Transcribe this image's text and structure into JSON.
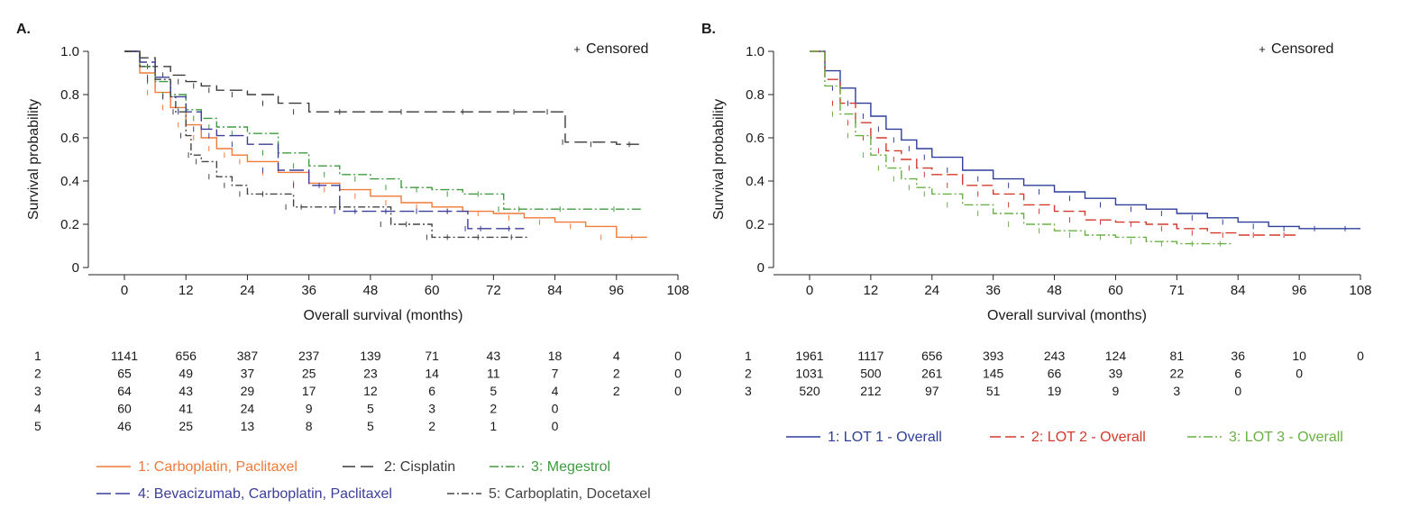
{
  "panels": [
    {
      "label": "A.",
      "censor_label": "Censored",
      "chart_data": {
        "type": "line",
        "xlabel": "Overall survival (months)",
        "ylabel": "Survival probability",
        "xlim": [
          0,
          108
        ],
        "ylim": [
          0,
          1
        ],
        "x_ticks": [
          0,
          12,
          24,
          36,
          48,
          60,
          72,
          84,
          96,
          108
        ],
        "x_tick_labels": [
          "0",
          "12",
          "24",
          "36",
          "48",
          "60",
          "72",
          "84",
          "96",
          "108"
        ],
        "y_ticks": [
          0,
          0.2,
          0.4,
          0.6,
          0.8,
          1.0
        ],
        "y_tick_labels": [
          "0",
          "0.2",
          "0.4",
          "0.6",
          "0.8",
          "1.0"
        ],
        "grid": false,
        "legend_position": "bottom",
        "series": [
          {
            "name": "1: Carboplatin, Paclitaxel",
            "color": "#ef7a3a",
            "dash": "",
            "x": [
              0,
              3,
              6,
              9,
              12,
              15,
              18,
              21,
              24,
              30,
              36,
              42,
              48,
              54,
              60,
              66,
              72,
              78,
              84,
              90,
              96,
              102
            ],
            "y": [
              1.0,
              0.9,
              0.81,
              0.74,
              0.66,
              0.6,
              0.55,
              0.52,
              0.49,
              0.44,
              0.39,
              0.36,
              0.33,
              0.3,
              0.28,
              0.26,
              0.25,
              0.23,
              0.21,
              0.19,
              0.14,
              0.14
            ]
          },
          {
            "name": "2: Cisplatin",
            "color": "#3a3a3a",
            "dash": "14 6",
            "x": [
              0,
              3,
              6,
              9,
              12,
              15,
              18,
              24,
              30,
              36,
              48,
              60,
              72,
              80,
              85,
              86,
              96,
              101
            ],
            "y": [
              1.0,
              0.97,
              0.93,
              0.89,
              0.86,
              0.84,
              0.82,
              0.8,
              0.76,
              0.72,
              0.72,
              0.72,
              0.72,
              0.72,
              0.72,
              0.58,
              0.57,
              0.57
            ]
          },
          {
            "name": "3: Megestrol",
            "color": "#3f9b3f",
            "dash": "10 3 2 3",
            "x": [
              0,
              3,
              6,
              9,
              12,
              15,
              18,
              24,
              30,
              36,
              42,
              48,
              54,
              60,
              66,
              72,
              74,
              80,
              90,
              101
            ],
            "y": [
              1.0,
              0.93,
              0.86,
              0.8,
              0.73,
              0.69,
              0.65,
              0.62,
              0.53,
              0.47,
              0.43,
              0.41,
              0.37,
              0.36,
              0.34,
              0.34,
              0.27,
              0.27,
              0.27,
              0.27
            ]
          },
          {
            "name": "4: Bevacizumab, Carboplatin, Paclitaxel",
            "color": "#3b3e9a",
            "dash": "16 5",
            "x": [
              0,
              3,
              6,
              9,
              12,
              15,
              18,
              24,
              30,
              36,
              40,
              42,
              48,
              54,
              60,
              66,
              67,
              72,
              78
            ],
            "y": [
              1.0,
              0.95,
              0.88,
              0.79,
              0.72,
              0.64,
              0.61,
              0.57,
              0.45,
              0.38,
              0.38,
              0.26,
              0.26,
              0.26,
              0.26,
              0.26,
              0.18,
              0.18,
              0.18
            ]
          },
          {
            "name": "5: Carboplatin, Docetaxel",
            "color": "#444444",
            "dash": "8 3 2 3",
            "x": [
              0,
              3,
              6,
              9,
              10,
              12,
              13,
              15,
              18,
              21,
              24,
              30,
              33,
              36,
              48,
              52,
              58,
              60,
              66,
              72,
              79
            ],
            "y": [
              1.0,
              0.93,
              0.87,
              0.79,
              0.72,
              0.61,
              0.52,
              0.49,
              0.42,
              0.38,
              0.34,
              0.34,
              0.28,
              0.28,
              0.28,
              0.2,
              0.2,
              0.14,
              0.14,
              0.14,
              0.14
            ]
          }
        ]
      },
      "risk_table": {
        "columns_x": [
          0,
          12,
          24,
          36,
          48,
          60,
          72,
          84,
          96,
          108
        ],
        "rows": [
          {
            "label": "1",
            "values": [
              "1141",
              "656",
              "387",
              "237",
              "139",
              "71",
              "43",
              "18",
              "4",
              "0"
            ]
          },
          {
            "label": "2",
            "values": [
              "65",
              "49",
              "37",
              "25",
              "23",
              "14",
              "11",
              "7",
              "2",
              "0"
            ]
          },
          {
            "label": "3",
            "values": [
              "64",
              "43",
              "29",
              "17",
              "12",
              "6",
              "5",
              "4",
              "2",
              "0"
            ]
          },
          {
            "label": "4",
            "values": [
              "60",
              "41",
              "24",
              "9",
              "5",
              "3",
              "2",
              "0",
              "",
              ""
            ]
          },
          {
            "label": "5",
            "values": [
              "46",
              "25",
              "13",
              "8",
              "5",
              "2",
              "1",
              "0",
              "",
              ""
            ]
          }
        ]
      }
    },
    {
      "label": "B.",
      "censor_label": "Censored",
      "chart_data": {
        "type": "line",
        "xlabel": "Overall survival (months)",
        "ylabel": "Survival probability",
        "xlim": [
          0,
          108
        ],
        "ylim": [
          0,
          1
        ],
        "x_ticks": [
          0,
          12,
          24,
          36,
          48,
          60,
          71,
          84,
          96,
          108
        ],
        "x_tick_labels": [
          "0",
          "12",
          "24",
          "36",
          "48",
          "60",
          "71",
          "84",
          "96",
          "108"
        ],
        "y_ticks": [
          0,
          0.2,
          0.4,
          0.6,
          0.8,
          1.0
        ],
        "y_tick_labels": [
          "0",
          "0.2",
          "0.4",
          "0.6",
          "0.8",
          "1.0"
        ],
        "grid": false,
        "legend_position": "bottom",
        "series": [
          {
            "name": "1: LOT 1 - Overall",
            "color": "#2e3f9a",
            "dash": "",
            "x": [
              0,
              3,
              6,
              9,
              12,
              15,
              18,
              21,
              24,
              30,
              36,
              42,
              48,
              54,
              60,
              66,
              72,
              78,
              84,
              90,
              96,
              102,
              108
            ],
            "y": [
              1.0,
              0.91,
              0.83,
              0.76,
              0.7,
              0.64,
              0.59,
              0.55,
              0.51,
              0.45,
              0.41,
              0.38,
              0.35,
              0.32,
              0.29,
              0.27,
              0.25,
              0.23,
              0.21,
              0.19,
              0.18,
              0.18,
              0.18
            ]
          },
          {
            "name": "2: LOT 2 - Overall",
            "color": "#d33a2c",
            "dash": "12 5",
            "x": [
              0,
              3,
              6,
              9,
              12,
              15,
              18,
              21,
              24,
              30,
              36,
              42,
              48,
              54,
              60,
              66,
              72,
              78,
              84,
              90,
              96
            ],
            "y": [
              1.0,
              0.87,
              0.76,
              0.67,
              0.6,
              0.54,
              0.5,
              0.46,
              0.43,
              0.38,
              0.34,
              0.29,
              0.26,
              0.22,
              0.21,
              0.2,
              0.18,
              0.16,
              0.15,
              0.15,
              0.15
            ]
          },
          {
            "name": "3: LOT 3 - Overall",
            "color": "#69b045",
            "dash": "10 3 2 3",
            "x": [
              0,
              3,
              6,
              9,
              12,
              15,
              18,
              21,
              24,
              30,
              36,
              42,
              48,
              54,
              60,
              66,
              72,
              78,
              83
            ],
            "y": [
              1.0,
              0.84,
              0.71,
              0.61,
              0.52,
              0.46,
              0.41,
              0.37,
              0.34,
              0.29,
              0.25,
              0.2,
              0.17,
              0.15,
              0.14,
              0.12,
              0.11,
              0.11,
              0.11
            ]
          }
        ]
      },
      "risk_table": {
        "columns_x": [
          0,
          12,
          24,
          36,
          48,
          60,
          71,
          84,
          96,
          108
        ],
        "rows": [
          {
            "label": "1",
            "values": [
              "1961",
              "1117",
              "656",
              "393",
              "243",
              "124",
              "81",
              "36",
              "10",
              "0"
            ]
          },
          {
            "label": "2",
            "values": [
              "1031",
              "500",
              "261",
              "145",
              "66",
              "39",
              "22",
              "6",
              "0",
              ""
            ]
          },
          {
            "label": "3",
            "values": [
              "520",
              "212",
              "97",
              "51",
              "19",
              "9",
              "3",
              "0",
              "",
              ""
            ]
          }
        ]
      }
    }
  ]
}
